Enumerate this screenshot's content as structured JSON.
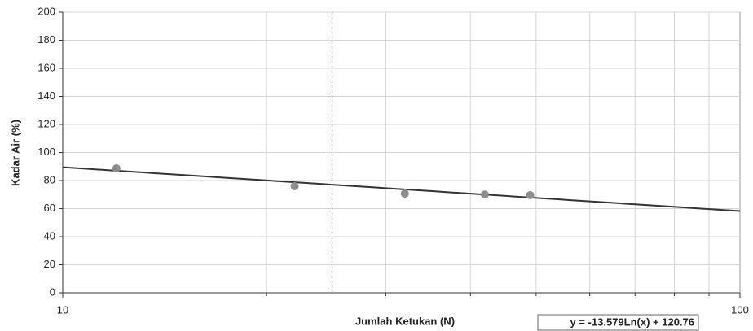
{
  "chart_data": {
    "type": "scatter",
    "xlabel": "Jumlah Ketukan (N)",
    "ylabel": "Kadar Air (%)",
    "log_x": true,
    "xlim": [
      10,
      100
    ],
    "xticks": [
      10,
      100
    ],
    "x_minor_ticks": [
      20,
      30,
      40,
      50,
      60,
      70,
      80,
      90
    ],
    "ylim": [
      0,
      200
    ],
    "yticks": [
      0,
      20,
      40,
      60,
      80,
      100,
      120,
      140,
      160,
      180,
      200
    ],
    "grid": true,
    "vlines": [
      25
    ],
    "series": [
      {
        "color": "#8c8c8c",
        "x": [
          12,
          22,
          32,
          42,
          49
        ],
        "values": [
          88.7,
          76,
          70.7,
          70,
          69.6
        ]
      }
    ],
    "trendline": {
      "type": "log",
      "slope": -13.579,
      "intercept": 120.76,
      "color": "#333333",
      "label": "y = -13.579Ln(x) + 120.76"
    }
  }
}
